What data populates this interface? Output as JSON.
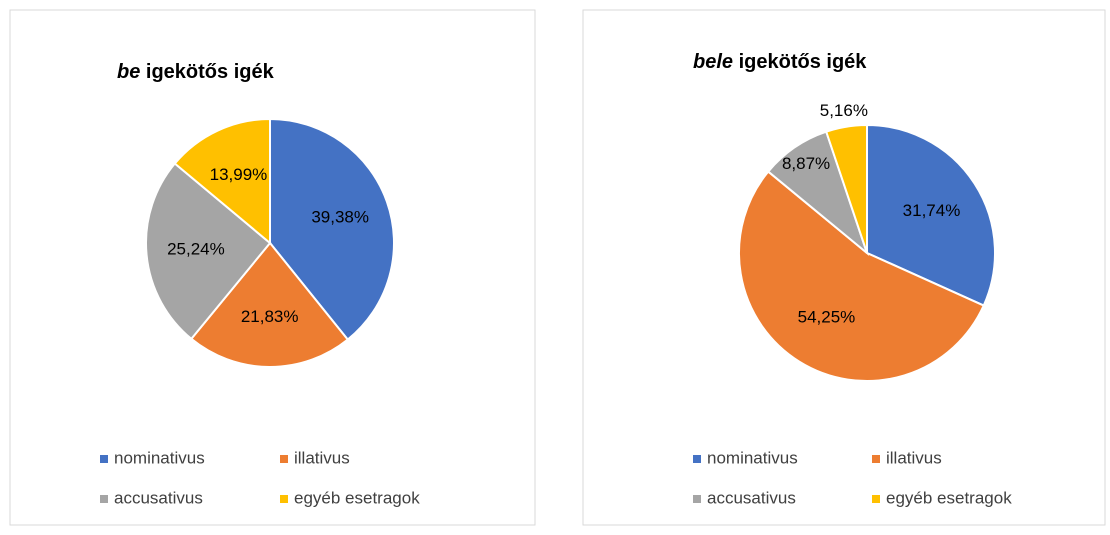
{
  "chart_data": [
    {
      "type": "pie",
      "title": {
        "italic": "be",
        "text": "igekötős igék"
      },
      "categories": [
        "nominativus",
        "illativus",
        "accusativus",
        "egyéb esetragok"
      ],
      "colors": [
        "#4472c4",
        "#ed7d31",
        "#a5a5a5",
        "#ffc000"
      ],
      "values": [
        39.38,
        21.83,
        25.24,
        13.99
      ],
      "value_labels": [
        "39,38%",
        "21,83%",
        "25,24%",
        "13,99%"
      ],
      "legend": "bottom"
    },
    {
      "type": "pie",
      "title": {
        "italic": "bele",
        "text": "igekötős igék"
      },
      "categories": [
        "nominativus",
        "illativus",
        "accusativus",
        "egyéb esetragok"
      ],
      "colors": [
        "#4472c4",
        "#ed7d31",
        "#a5a5a5",
        "#ffc000"
      ],
      "values": [
        31.74,
        54.25,
        8.87,
        5.16
      ],
      "value_labels": [
        "31,74%",
        "54,25%",
        "8,87%",
        "5,16%"
      ],
      "legend": "bottom"
    }
  ]
}
